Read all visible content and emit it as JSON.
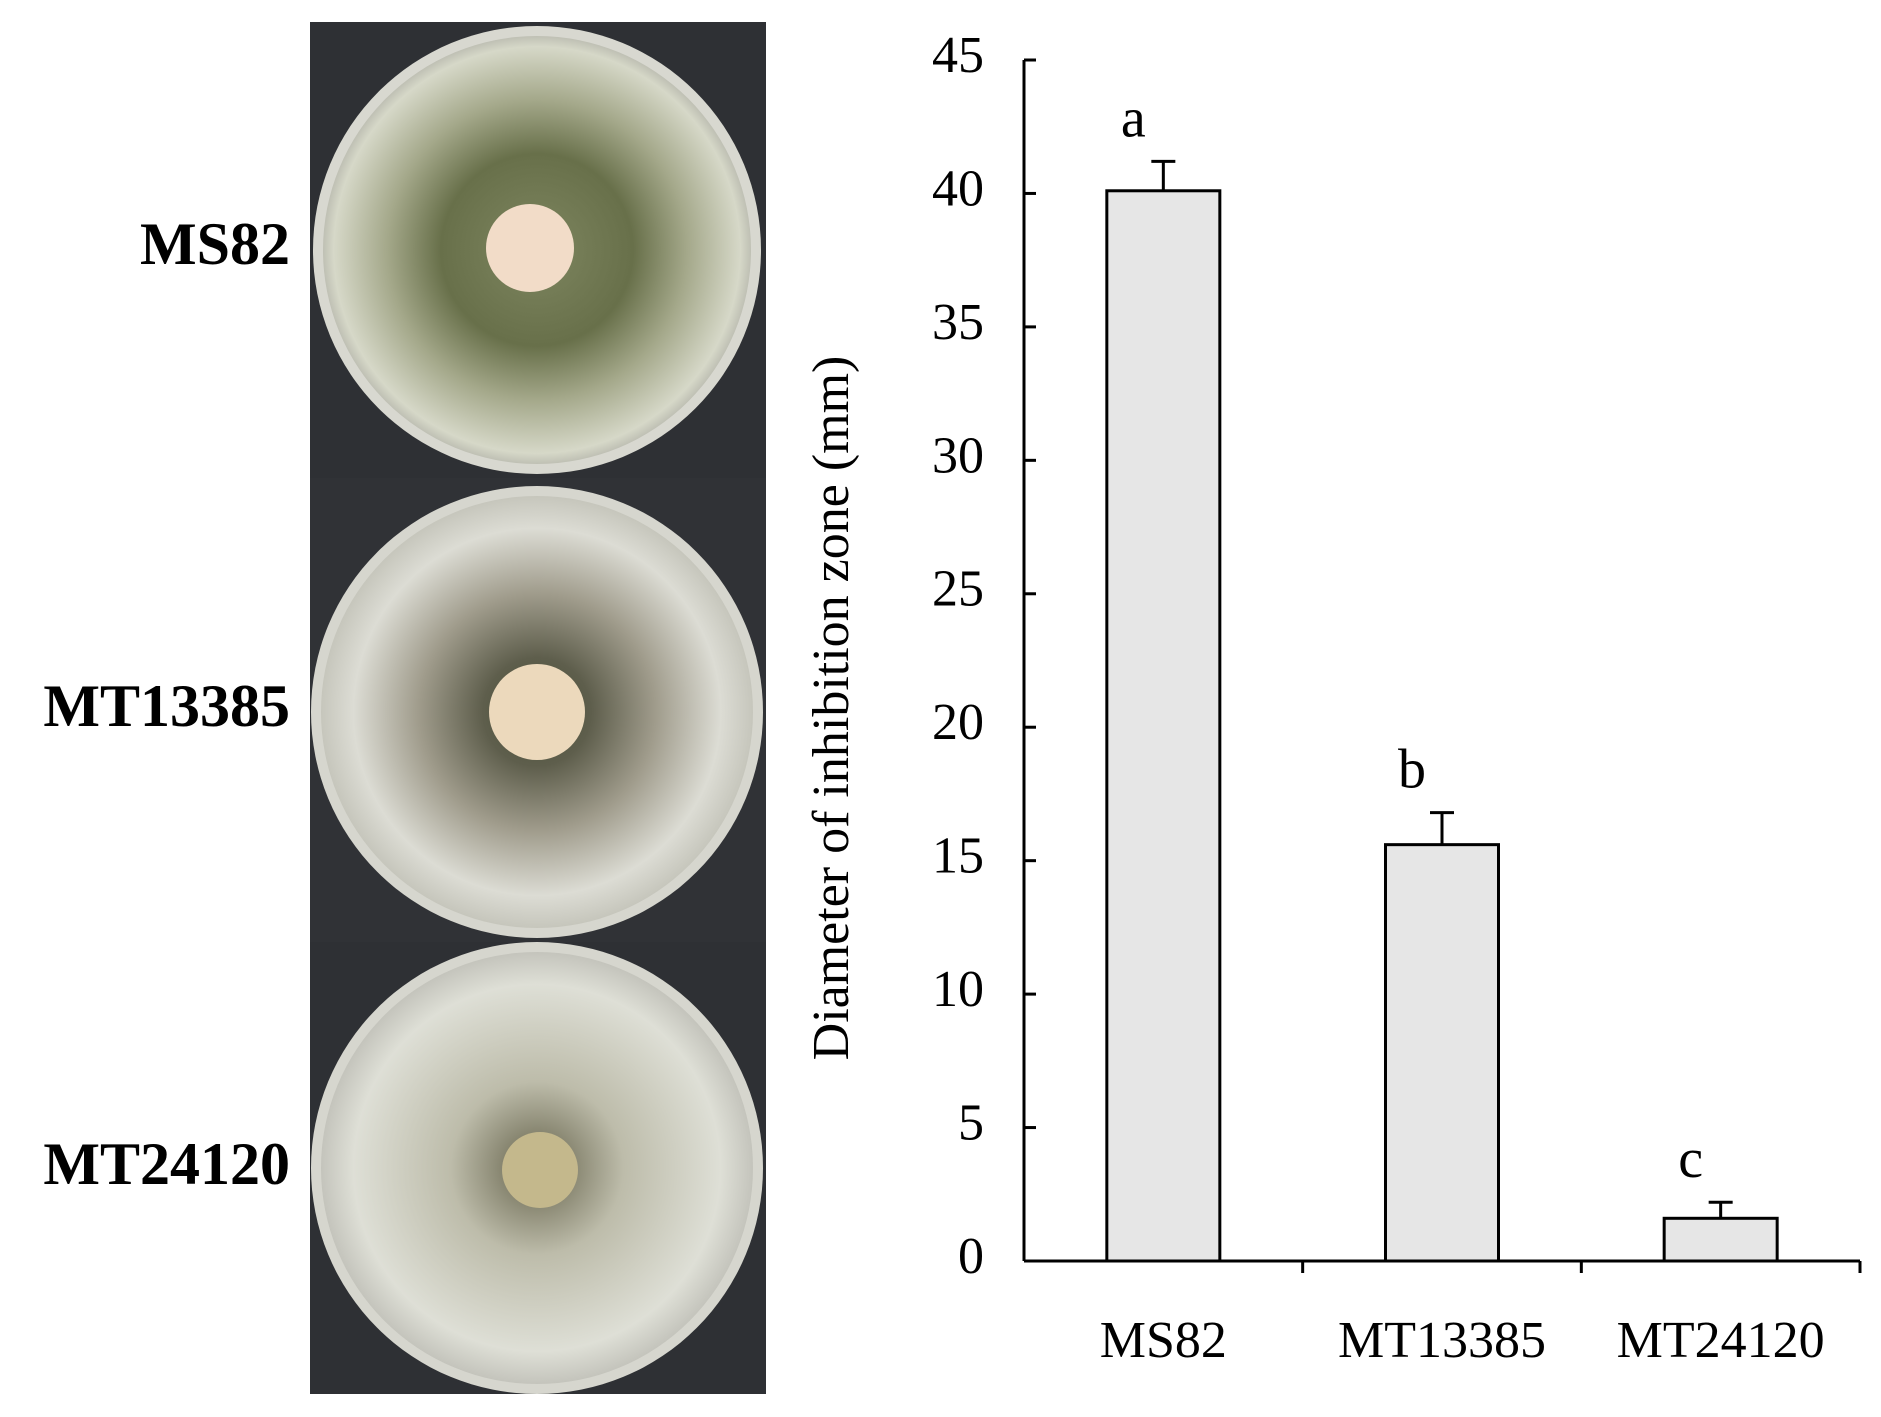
{
  "photos": {
    "labels": [
      "MS82",
      "MT13385",
      "MT24120"
    ]
  },
  "chart_data": {
    "type": "bar",
    "y_label": "Diameter of inhibition zone (mm)",
    "categories": [
      "MS82",
      "MT13385",
      "MT24120"
    ],
    "values": [
      40.1,
      15.6,
      1.6
    ],
    "errors": [
      1.1,
      1.2,
      0.6
    ],
    "annotations": [
      "a",
      "b",
      "c"
    ],
    "color": "#e6e6e6",
    "ylim": [
      0,
      45
    ],
    "yticks": [
      0,
      5,
      10,
      15,
      20,
      25,
      30,
      35,
      40,
      45
    ],
    "grid": false
  }
}
